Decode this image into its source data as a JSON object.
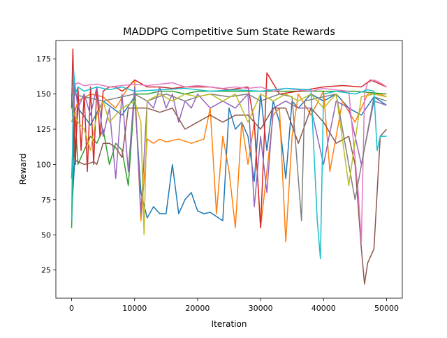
{
  "chart_data": {
    "type": "line",
    "title": "MADDPG Competitive Sum State Rewards",
    "xlabel": "Iteration",
    "ylabel": "Reward",
    "xlim": [
      -2500,
      52500
    ],
    "ylim": [
      5,
      188
    ],
    "x_ticks": [
      0,
      10000,
      20000,
      30000,
      40000,
      50000
    ],
    "x_tick_labels": [
      "0",
      "10000",
      "20000",
      "30000",
      "40000",
      "50000"
    ],
    "y_ticks": [
      25,
      50,
      75,
      100,
      125,
      150,
      175
    ],
    "y_tick_labels": [
      "25",
      "50",
      "75",
      "100",
      "125",
      "150",
      "175"
    ],
    "grid": false,
    "legend": "none",
    "series": [
      {
        "color": "#1f77b4",
        "x": [
          0,
          1000,
          3000,
          5000,
          8000,
          10000,
          11000,
          12000,
          13000,
          14000,
          15000,
          16000,
          17000,
          18000,
          19000,
          20000,
          21000,
          22000,
          24000,
          25000,
          26000,
          27000,
          28000,
          29000,
          30000,
          31000,
          32000,
          33000,
          34000,
          35000,
          36000,
          38000,
          40000,
          42000,
          44000,
          46000,
          48000,
          50000
        ],
        "y": [
          66,
          140,
          128,
          145,
          135,
          148,
          80,
          62,
          70,
          65,
          65,
          100,
          65,
          75,
          80,
          67,
          65,
          66,
          60,
          140,
          125,
          130,
          120,
          88,
          150,
          110,
          145,
          130,
          90,
          145,
          140,
          150,
          145,
          150,
          140,
          135,
          148,
          142
        ]
      },
      {
        "color": "#ff7f0e",
        "x": [
          0,
          1000,
          3000,
          5000,
          7000,
          9000,
          10000,
          11000,
          12000,
          13000,
          14000,
          15000,
          17000,
          19000,
          21000,
          22000,
          23000,
          24000,
          25000,
          26000,
          27000,
          28000,
          29000,
          30000,
          31000,
          32000,
          33000,
          34000,
          35000,
          36000,
          38000,
          40000,
          41000,
          43000,
          45000,
          47000,
          49000,
          50000
        ],
        "y": [
          130,
          145,
          150,
          148,
          140,
          155,
          160,
          60,
          118,
          115,
          118,
          116,
          118,
          115,
          118,
          140,
          65,
          120,
          95,
          55,
          130,
          100,
          130,
          55,
          95,
          135,
          140,
          45,
          120,
          150,
          135,
          152,
          95,
          145,
          130,
          150,
          150,
          148
        ]
      },
      {
        "color": "#2ca02c",
        "x": [
          0,
          500,
          1000,
          2000,
          3000,
          4000,
          5000,
          6000,
          7000,
          8000,
          9000,
          10000,
          12000,
          14000,
          16000,
          18000,
          20000,
          25000,
          30000,
          35000,
          40000,
          45000,
          50000
        ],
        "y": [
          55,
          140,
          100,
          110,
          120,
          115,
          125,
          100,
          115,
          110,
          85,
          150,
          150,
          152,
          152,
          150,
          152,
          152,
          152,
          152,
          152,
          152,
          150
        ]
      },
      {
        "color": "#d62728",
        "x": [
          0,
          200,
          600,
          1000,
          1500,
          2000,
          2500,
          3000,
          3500,
          4000,
          4500,
          5000,
          6000,
          7000,
          8000,
          9000,
          10000,
          12000,
          14000,
          16000,
          18000,
          20000,
          22000,
          25000,
          28000,
          29000,
          30000,
          31000,
          33000,
          36000,
          40000,
          43000,
          46000,
          47500,
          50000
        ],
        "y": [
          140,
          182,
          100,
          155,
          110,
          150,
          95,
          155,
          100,
          155,
          120,
          152,
          155,
          155,
          152,
          155,
          160,
          155,
          155,
          154,
          155,
          155,
          155,
          153,
          155,
          130,
          55,
          165,
          150,
          152,
          155,
          156,
          155,
          160,
          155
        ]
      },
      {
        "color": "#9467bd",
        "x": [
          0,
          500,
          1000,
          2000,
          3000,
          4000,
          5000,
          6000,
          7000,
          8000,
          9000,
          10000,
          11000,
          12000,
          13000,
          14000,
          15000,
          16000,
          17000,
          18000,
          19000,
          20000,
          22000,
          24000,
          26000,
          28000,
          29000,
          30000,
          31000,
          32000,
          34000,
          36000,
          38000,
          40000,
          42000,
          44000,
          46000,
          48000,
          50000
        ],
        "y": [
          90,
          158,
          140,
          150,
          135,
          155,
          120,
          140,
          90,
          150,
          95,
          155,
          65,
          145,
          140,
          155,
          140,
          150,
          130,
          145,
          140,
          150,
          140,
          145,
          140,
          150,
          70,
          120,
          80,
          140,
          145,
          140,
          140,
          100,
          145,
          140,
          100,
          145,
          142
        ]
      },
      {
        "color": "#8c564b",
        "x": [
          0,
          500,
          1000,
          2000,
          3000,
          3500,
          4000,
          5000,
          6000,
          7000,
          8000,
          9000,
          10000,
          12000,
          14000,
          16000,
          18000,
          20000,
          22000,
          24000,
          26000,
          28000,
          30000,
          32000,
          34000,
          36000,
          38000,
          40000,
          42000,
          44000,
          45000,
          46000,
          46500,
          47000,
          48000,
          49000,
          50000
        ],
        "y": [
          150,
          103,
          102,
          100,
          101,
          102,
          100,
          115,
          115,
          112,
          105,
          140,
          140,
          140,
          137,
          140,
          125,
          130,
          135,
          130,
          135,
          135,
          125,
          140,
          140,
          115,
          140,
          130,
          115,
          120,
          100,
          40,
          15,
          30,
          40,
          120,
          125
        ]
      },
      {
        "color": "#e377c2",
        "x": [
          0,
          1000,
          2000,
          4000,
          6000,
          8000,
          10000,
          12000,
          14000,
          16000,
          18000,
          20000,
          22000,
          24000,
          26000,
          28000,
          30000,
          32000,
          34000,
          36000,
          38000,
          40000,
          42000,
          44000,
          45500,
          46000,
          46500,
          47000,
          48000,
          49000,
          50000
        ],
        "y": [
          155,
          158,
          156,
          157,
          155,
          156,
          157,
          156,
          157,
          158,
          155,
          156,
          155,
          154,
          155,
          154,
          155,
          152,
          154,
          153,
          152,
          154,
          153,
          152,
          80,
          45,
          150,
          158,
          160,
          158,
          155
        ]
      },
      {
        "color": "#7f7f7f",
        "x": [
          0,
          2000,
          5000,
          8000,
          10000,
          12000,
          15000,
          18000,
          20000,
          22000,
          25000,
          28000,
          30000,
          33000,
          35000,
          36500,
          37000,
          40000,
          42000,
          45000,
          48000,
          50000
        ],
        "y": [
          150,
          148,
          145,
          148,
          150,
          145,
          150,
          145,
          148,
          150,
          148,
          150,
          145,
          150,
          148,
          60,
          145,
          148,
          150,
          75,
          148,
          145
        ]
      },
      {
        "color": "#bcbd22",
        "x": [
          0,
          1000,
          2000,
          3000,
          4000,
          5000,
          6000,
          8000,
          10000,
          11000,
          11500,
          12000,
          14000,
          16000,
          18000,
          20000,
          22000,
          24000,
          26000,
          28000,
          30000,
          32000,
          34000,
          36000,
          38000,
          40000,
          42000,
          44000,
          46000,
          48000,
          50000
        ],
        "y": [
          140,
          130,
          125,
          110,
          135,
          145,
          130,
          140,
          145,
          130,
          50,
          145,
          150,
          145,
          150,
          148,
          150,
          145,
          150,
          130,
          150,
          145,
          150,
          145,
          150,
          140,
          150,
          85,
          148,
          150,
          148
        ]
      },
      {
        "color": "#17becf",
        "x": [
          0,
          300,
          600,
          1000,
          2000,
          4000,
          6000,
          8000,
          10000,
          14000,
          18000,
          22000,
          26000,
          30000,
          34000,
          38000,
          39000,
          39500,
          40000,
          42000,
          45000,
          47000,
          48000,
          48500,
          49000,
          50000
        ],
        "y": [
          60,
          168,
          150,
          155,
          152,
          155,
          153,
          155,
          152,
          153,
          154,
          152,
          153,
          152,
          154,
          153,
          60,
          33,
          150,
          152,
          150,
          153,
          152,
          110,
          120,
          120
        ]
      }
    ]
  }
}
